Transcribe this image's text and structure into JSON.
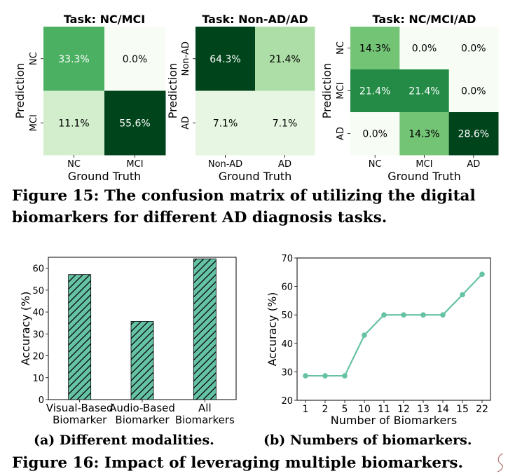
{
  "figure15": {
    "caption": "Figure 15: The confusion matrix of utilizing the digital biomarkers for different AD diagnosis tasks.",
    "xlabel": "Ground Truth",
    "ylabel": "Prediction"
  },
  "figure16": {
    "caption": "Figure 16: Impact of leveraging multiple biomarkers.",
    "sub_a": "(a) Different modalities.",
    "sub_b": "(b) Numbers of biomarkers."
  },
  "colors": {
    "cmap": [
      "#f7fcf5",
      "#00441b"
    ],
    "bar_fill": "#66c2a5",
    "line": "#66c2a5"
  },
  "chart_data": [
    {
      "type": "heatmap",
      "title": "Task: NC/MCI",
      "xlabel": "Ground Truth",
      "ylabel": "Prediction",
      "x_categories": [
        "NC",
        "MCI"
      ],
      "y_categories": [
        "NC",
        "MCI"
      ],
      "values": [
        [
          33.3,
          0.0
        ],
        [
          11.1,
          55.6
        ]
      ],
      "labels": [
        [
          "33.3%",
          "0.0%"
        ],
        [
          "11.1%",
          "55.6%"
        ]
      ]
    },
    {
      "type": "heatmap",
      "title": "Task: Non-AD/AD",
      "xlabel": "Ground Truth",
      "ylabel": "Prediction",
      "x_categories": [
        "Non-AD",
        "AD"
      ],
      "y_categories": [
        "Non-AD",
        "AD"
      ],
      "values": [
        [
          64.3,
          21.4
        ],
        [
          7.1,
          7.1
        ]
      ],
      "labels": [
        [
          "64.3%",
          "21.4%"
        ],
        [
          "7.1%",
          "7.1%"
        ]
      ]
    },
    {
      "type": "heatmap",
      "title": "Task: NC/MCI/AD",
      "xlabel": "Ground Truth",
      "ylabel": "Prediction",
      "x_categories": [
        "NC",
        "MCI",
        "AD"
      ],
      "y_categories": [
        "NC",
        "MCI",
        "AD"
      ],
      "values": [
        [
          14.3,
          0.0,
          0.0
        ],
        [
          21.4,
          21.4,
          0.0
        ],
        [
          0.0,
          14.3,
          28.6
        ]
      ],
      "labels": [
        [
          "14.3%",
          "0.0%",
          "0.0%"
        ],
        [
          "21.4%",
          "21.4%",
          "0.0%"
        ],
        [
          "0.0%",
          "14.3%",
          "28.6%"
        ]
      ]
    },
    {
      "type": "bar",
      "categories": [
        "Visual-Based\nBiomarker",
        "Audio-Based\nBiomarker",
        "All\nBiomarkers"
      ],
      "values": [
        57.1,
        35.7,
        64.3
      ],
      "ylabel": "Accuracy (%)",
      "ylim": [
        0,
        65
      ],
      "yticks": [
        0,
        10,
        20,
        30,
        40,
        50,
        60
      ],
      "hatch": "diagonal"
    },
    {
      "type": "line",
      "x": [
        "1",
        "2",
        "5",
        "10",
        "11",
        "12",
        "13",
        "14",
        "15",
        "22"
      ],
      "values": [
        28.6,
        28.6,
        28.6,
        42.9,
        50.0,
        50.0,
        50.0,
        50.0,
        57.1,
        64.3
      ],
      "xlabel": "Number of Biomarkers",
      "ylabel": "Accuracy (%)",
      "ylim": [
        20,
        70
      ],
      "yticks": [
        20,
        30,
        40,
        50,
        60,
        70
      ]
    }
  ]
}
